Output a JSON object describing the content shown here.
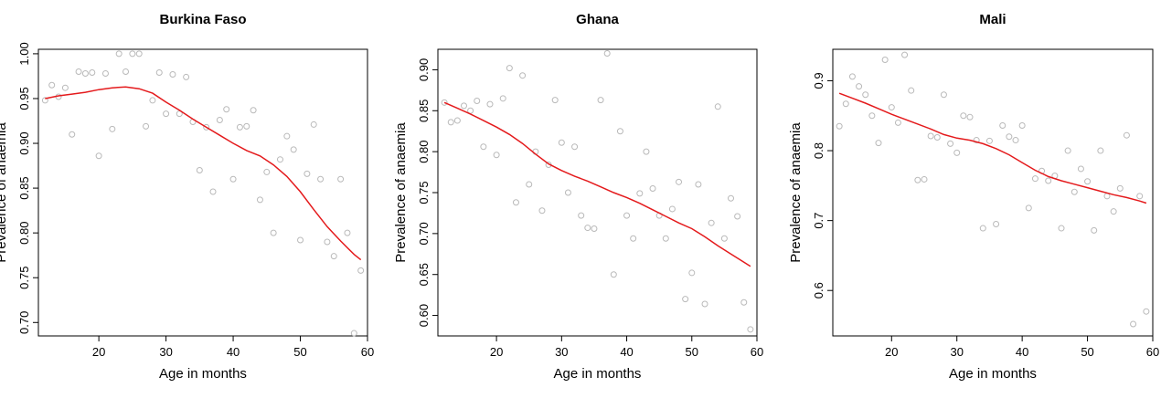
{
  "chart_data": [
    {
      "type": "scatter",
      "title": "Burkina Faso",
      "xlabel": "Age in months",
      "ylabel": "Prevalence of anaemia",
      "xlim": [
        11,
        60
      ],
      "ylim": [
        0.685,
        1.005
      ],
      "xticks": [
        20,
        30,
        40,
        50,
        60
      ],
      "yticks": [
        0.7,
        0.75,
        0.8,
        0.85,
        0.9,
        0.95,
        1.0
      ],
      "ytick_labels": [
        "0.70",
        "0.75",
        "0.80",
        "0.85",
        "0.90",
        "0.95",
        "1.00"
      ],
      "colors": {
        "points": "#b9b9b9",
        "smooth": "#e41a1c"
      },
      "series": [
        {
          "kind": "points",
          "x": [
            12,
            13,
            14,
            15,
            16,
            17,
            18,
            19,
            20,
            21,
            22,
            23,
            24,
            25,
            26,
            27,
            28,
            29,
            30,
            31,
            32,
            33,
            34,
            35,
            36,
            37,
            38,
            39,
            40,
            41,
            42,
            43,
            44,
            45,
            46,
            47,
            48,
            49,
            50,
            51,
            52,
            53,
            54,
            55,
            56,
            57,
            58,
            59
          ],
          "y": [
            0.948,
            0.965,
            0.952,
            0.962,
            0.91,
            0.98,
            0.978,
            0.979,
            0.886,
            0.978,
            0.916,
            1.0,
            0.98,
            1.0,
            1.0,
            0.919,
            0.948,
            0.979,
            0.933,
            0.977,
            0.933,
            0.974,
            0.924,
            0.87,
            0.918,
            0.846,
            0.926,
            0.938,
            0.86,
            0.918,
            0.919,
            0.937,
            0.837,
            0.868,
            0.8,
            0.882,
            0.908,
            0.893,
            0.792,
            0.866,
            0.921,
            0.86,
            0.79,
            0.774,
            0.86,
            0.8,
            0.688,
            0.758
          ]
        },
        {
          "kind": "smooth",
          "x": [
            12,
            14,
            16,
            18,
            20,
            22,
            24,
            26,
            28,
            30,
            32,
            34,
            36,
            38,
            40,
            42,
            44,
            46,
            48,
            50,
            52,
            54,
            56,
            58,
            59
          ],
          "y": [
            0.95,
            0.953,
            0.955,
            0.957,
            0.96,
            0.962,
            0.963,
            0.961,
            0.956,
            0.946,
            0.937,
            0.927,
            0.918,
            0.909,
            0.9,
            0.892,
            0.886,
            0.876,
            0.863,
            0.846,
            0.826,
            0.807,
            0.791,
            0.776,
            0.77
          ]
        }
      ]
    },
    {
      "type": "scatter",
      "title": "Ghana",
      "xlabel": "Age in months",
      "ylabel": "Prevalence of anaemia",
      "xlim": [
        11,
        60
      ],
      "ylim": [
        0.575,
        0.925
      ],
      "xticks": [
        20,
        30,
        40,
        50,
        60
      ],
      "yticks": [
        0.6,
        0.65,
        0.7,
        0.75,
        0.8,
        0.85,
        0.9
      ],
      "ytick_labels": [
        "0.60",
        "0.65",
        "0.70",
        "0.75",
        "0.80",
        "0.85",
        "0.90"
      ],
      "colors": {
        "points": "#b9b9b9",
        "smooth": "#e41a1c"
      },
      "series": [
        {
          "kind": "points",
          "x": [
            12,
            13,
            14,
            15,
            16,
            17,
            18,
            19,
            20,
            21,
            22,
            23,
            24,
            25,
            26,
            27,
            28,
            29,
            30,
            31,
            32,
            33,
            34,
            35,
            36,
            37,
            38,
            39,
            40,
            41,
            42,
            43,
            44,
            45,
            46,
            47,
            48,
            49,
            50,
            51,
            52,
            53,
            54,
            55,
            56,
            57,
            58,
            59
          ],
          "y": [
            0.86,
            0.836,
            0.838,
            0.856,
            0.85,
            0.862,
            0.806,
            0.858,
            0.796,
            0.865,
            0.902,
            0.738,
            0.893,
            0.76,
            0.8,
            0.728,
            0.784,
            0.863,
            0.811,
            0.75,
            0.806,
            0.722,
            0.707,
            0.706,
            0.863,
            0.92,
            0.65,
            0.825,
            0.722,
            0.694,
            0.749,
            0.8,
            0.755,
            0.722,
            0.694,
            0.73,
            0.763,
            0.62,
            0.652,
            0.76,
            0.614,
            0.713,
            0.855,
            0.694,
            0.743,
            0.721,
            0.616,
            0.583
          ]
        },
        {
          "kind": "smooth",
          "x": [
            12,
            14,
            16,
            18,
            20,
            22,
            24,
            26,
            28,
            30,
            32,
            34,
            36,
            38,
            40,
            42,
            44,
            46,
            48,
            50,
            52,
            54,
            56,
            58,
            59
          ],
          "y": [
            0.86,
            0.853,
            0.846,
            0.838,
            0.83,
            0.821,
            0.81,
            0.797,
            0.785,
            0.777,
            0.77,
            0.764,
            0.757,
            0.75,
            0.744,
            0.737,
            0.729,
            0.721,
            0.713,
            0.706,
            0.696,
            0.685,
            0.675,
            0.665,
            0.66
          ]
        }
      ]
    },
    {
      "type": "scatter",
      "title": "Mali",
      "xlabel": "Age in months",
      "ylabel": "Prevalence of anaemia",
      "xlim": [
        11,
        60
      ],
      "ylim": [
        0.535,
        0.945
      ],
      "xticks": [
        20,
        30,
        40,
        50,
        60
      ],
      "yticks": [
        0.6,
        0.7,
        0.8,
        0.9
      ],
      "ytick_labels": [
        "0.6",
        "0.7",
        "0.8",
        "0.9"
      ],
      "colors": {
        "points": "#b9b9b9",
        "smooth": "#e41a1c"
      },
      "series": [
        {
          "kind": "points",
          "x": [
            12,
            13,
            14,
            15,
            16,
            17,
            18,
            19,
            20,
            21,
            22,
            23,
            24,
            25,
            26,
            27,
            28,
            29,
            30,
            31,
            32,
            33,
            34,
            35,
            36,
            37,
            38,
            39,
            40,
            41,
            42,
            43,
            44,
            45,
            46,
            47,
            48,
            49,
            50,
            51,
            52,
            53,
            54,
            55,
            56,
            57,
            58,
            59
          ],
          "y": [
            0.835,
            0.867,
            0.906,
            0.892,
            0.88,
            0.85,
            0.811,
            0.93,
            0.862,
            0.84,
            0.937,
            0.886,
            0.758,
            0.759,
            0.821,
            0.819,
            0.88,
            0.81,
            0.797,
            0.85,
            0.848,
            0.815,
            0.689,
            0.814,
            0.695,
            0.836,
            0.82,
            0.815,
            0.836,
            0.718,
            0.76,
            0.771,
            0.757,
            0.764,
            0.689,
            0.8,
            0.741,
            0.774,
            0.756,
            0.686,
            0.8,
            0.735,
            0.713,
            0.746,
            0.822,
            0.552,
            0.735,
            0.57
          ]
        },
        {
          "kind": "smooth",
          "x": [
            12,
            14,
            16,
            18,
            20,
            22,
            24,
            26,
            28,
            30,
            32,
            34,
            36,
            38,
            40,
            42,
            44,
            46,
            48,
            50,
            52,
            54,
            56,
            58,
            59
          ],
          "y": [
            0.882,
            0.875,
            0.868,
            0.86,
            0.852,
            0.845,
            0.838,
            0.831,
            0.823,
            0.818,
            0.815,
            0.81,
            0.803,
            0.794,
            0.783,
            0.772,
            0.763,
            0.757,
            0.752,
            0.747,
            0.742,
            0.737,
            0.733,
            0.728,
            0.725
          ]
        }
      ]
    }
  ]
}
